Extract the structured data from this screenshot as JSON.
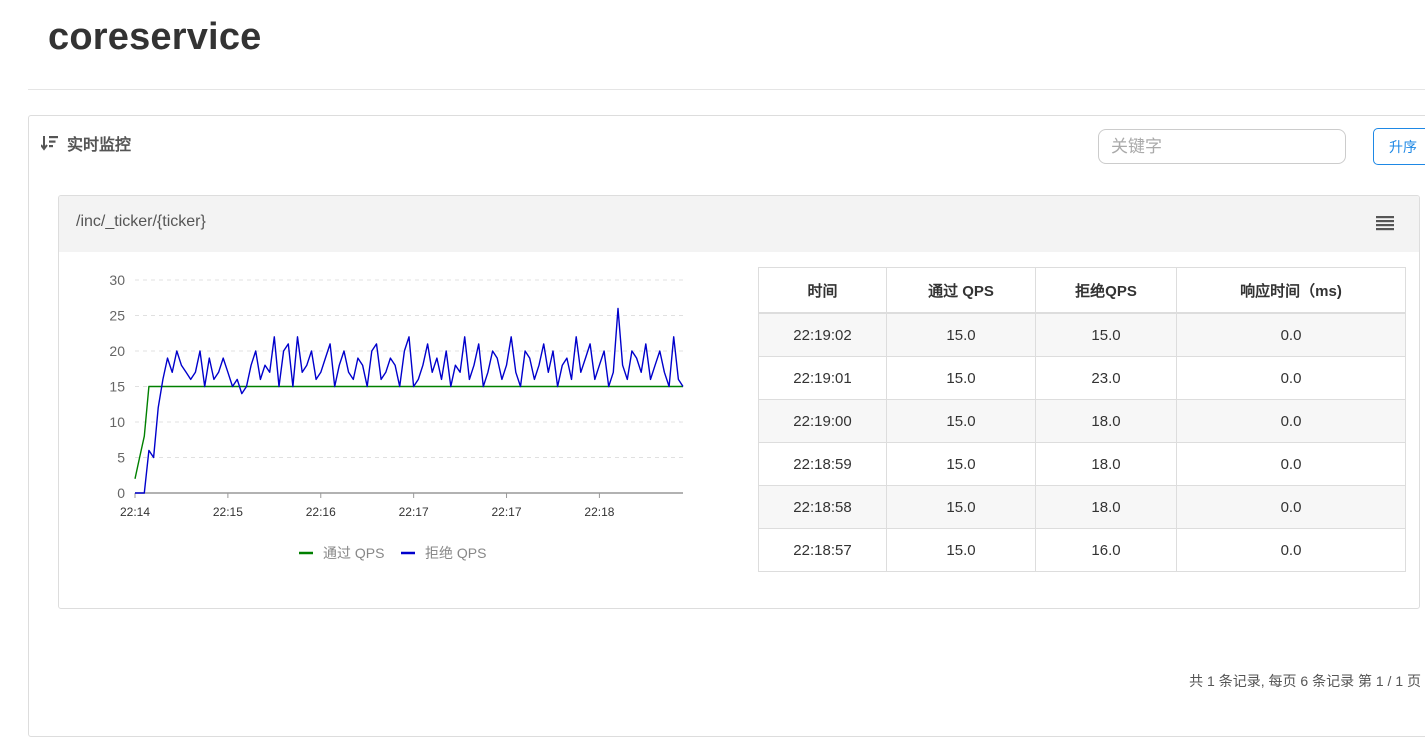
{
  "app": {
    "title": "coreservice"
  },
  "panel": {
    "heading": "实时监控",
    "search_placeholder": "关键字",
    "sort_label": "升序",
    "pagination": "共 1 条记录, 每页 6 条记录 第 1 / 1 页"
  },
  "resource": {
    "path": "/inc/_ticker/{ticker}"
  },
  "table": {
    "headers": [
      "时间",
      "通过 QPS",
      "拒绝QPS",
      "响应时间（ms)"
    ],
    "rows": [
      [
        "22:19:02",
        "15.0",
        "15.0",
        "0.0"
      ],
      [
        "22:19:01",
        "15.0",
        "23.0",
        "0.0"
      ],
      [
        "22:19:00",
        "15.0",
        "18.0",
        "0.0"
      ],
      [
        "22:18:59",
        "15.0",
        "18.0",
        "0.0"
      ],
      [
        "22:18:58",
        "15.0",
        "18.0",
        "0.0"
      ],
      [
        "22:18:57",
        "15.0",
        "16.0",
        "0.0"
      ]
    ]
  },
  "colors": {
    "pass": "#008000",
    "block": "#0000cc",
    "accent": "#1e88e5"
  },
  "chart_data": {
    "type": "line",
    "title": "",
    "xlabel": "",
    "ylabel": "",
    "ylim": [
      0,
      30
    ],
    "yticks": [
      0,
      5,
      10,
      15,
      20,
      25,
      30
    ],
    "xtick_labels": [
      "22:14",
      "22:15",
      "22:16",
      "22:17",
      "22:17",
      "22:18"
    ],
    "xtick_positions": [
      0,
      20,
      40,
      60,
      80,
      100
    ],
    "x_count": 119,
    "grid": true,
    "legend_position": "bottom",
    "series": [
      {
        "name": "通过 QPS",
        "color": "#008000",
        "values": [
          2,
          5,
          8,
          15,
          15,
          15,
          15,
          15,
          15,
          15,
          15,
          15,
          15,
          15,
          15,
          15,
          15,
          15,
          15,
          15,
          15,
          15,
          15,
          15,
          15,
          15,
          15,
          15,
          15,
          15,
          15,
          15,
          15,
          15,
          15,
          15,
          15,
          15,
          15,
          15,
          15,
          15,
          15,
          15,
          15,
          15,
          15,
          15,
          15,
          15,
          15,
          15,
          15,
          15,
          15,
          15,
          15,
          15,
          15,
          15,
          15,
          15,
          15,
          15,
          15,
          15,
          15,
          15,
          15,
          15,
          15,
          15,
          15,
          15,
          15,
          15,
          15,
          15,
          15,
          15,
          15,
          15,
          15,
          15,
          15,
          15,
          15,
          15,
          15,
          15,
          15,
          15,
          15,
          15,
          15,
          15,
          15,
          15,
          15,
          15,
          15,
          15,
          15,
          15,
          15,
          15,
          15,
          15,
          15,
          15,
          15,
          15,
          15,
          15,
          15,
          15,
          15,
          15,
          15
        ]
      },
      {
        "name": "拒绝 QPS",
        "color": "#0000cc",
        "values": [
          0,
          0,
          0,
          6,
          5,
          12,
          16,
          19,
          17,
          20,
          18,
          17,
          16,
          17,
          20,
          15,
          19,
          16,
          17,
          19,
          17,
          15,
          16,
          14,
          15,
          18,
          20,
          16,
          18,
          17,
          22,
          15,
          20,
          21,
          15,
          22,
          17,
          18,
          20,
          16,
          17,
          19,
          21,
          15,
          18,
          20,
          17,
          16,
          19,
          18,
          15,
          20,
          21,
          16,
          17,
          19,
          18,
          15,
          20,
          22,
          15,
          16,
          18,
          21,
          17,
          19,
          16,
          20,
          15,
          18,
          17,
          22,
          16,
          18,
          21,
          15,
          17,
          20,
          19,
          16,
          18,
          22,
          17,
          15,
          20,
          19,
          16,
          18,
          21,
          17,
          20,
          15,
          18,
          19,
          16,
          22,
          17,
          19,
          21,
          16,
          18,
          20,
          15,
          17,
          26,
          18,
          16,
          20,
          19,
          17,
          21,
          16,
          18,
          20,
          17,
          15,
          22,
          16,
          15
        ]
      }
    ]
  }
}
